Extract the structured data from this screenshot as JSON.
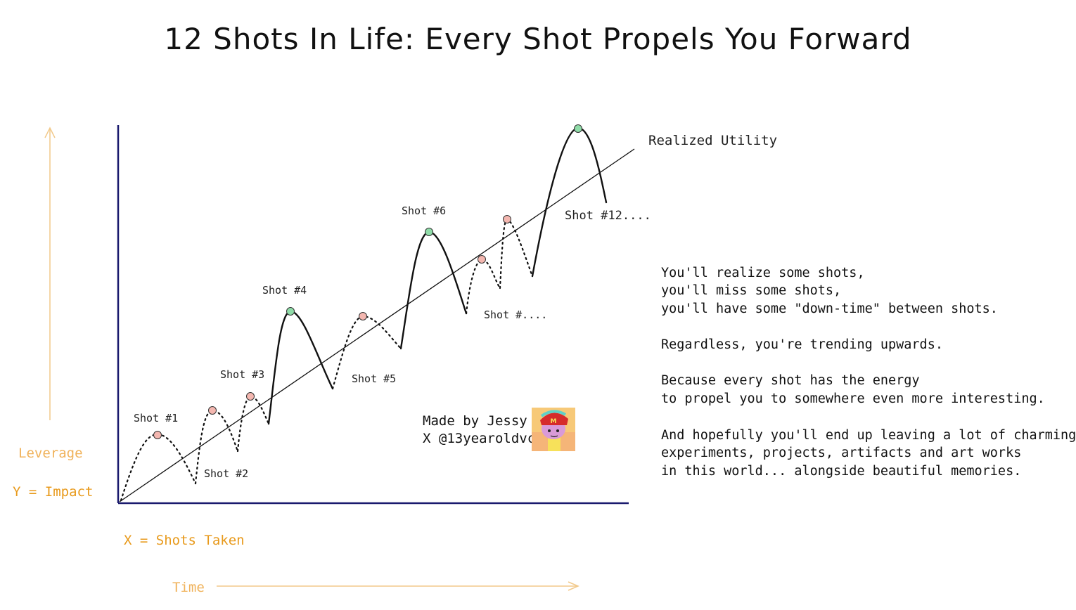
{
  "title": "12 Shots In Life: Every Shot Propels You Forward",
  "axes": {
    "y_label_top": "Leverage",
    "y_label": "Y = Impact",
    "x_label": "X = Shots Taken",
    "time_label": "Time"
  },
  "trend_label": "Realized Utility",
  "shots": [
    {
      "label": "Shot #1",
      "status": "missed"
    },
    {
      "label": "Shot #2",
      "status": "missed"
    },
    {
      "label": "Shot #3",
      "status": "missed"
    },
    {
      "label": "Shot #4",
      "status": "realized"
    },
    {
      "label": "Shot #5",
      "status": "missed"
    },
    {
      "label": "Shot #6",
      "status": "realized"
    },
    {
      "label": "Shot #....",
      "status": "missed"
    },
    {
      "label": "Shot #12....",
      "status": "realized"
    }
  ],
  "colors": {
    "realized_dot": "#8fdca8",
    "missed_dot": "#f4b7b0",
    "axis": "#1a1a6e",
    "orange": "#e89a1c",
    "arrow": "#f2c98a"
  },
  "credit": {
    "line1": "Made by Jessy",
    "line2": "X @13yearoldvc",
    "avatar_icon": "avatar-icon"
  },
  "paragraphs": [
    [
      "You'll realize some shots,",
      "you'll miss some shots,",
      "you'll have some \"down-time\" between shots."
    ],
    [
      "Regardless, you're trending upwards."
    ],
    [
      "Because every shot has the energy",
      "to propel you to somewhere even more interesting."
    ],
    [
      "And hopefully you'll end up leaving a lot of charming",
      "experiments, projects, artifacts and art works",
      "in this world... alongside beautiful memories."
    ]
  ]
}
